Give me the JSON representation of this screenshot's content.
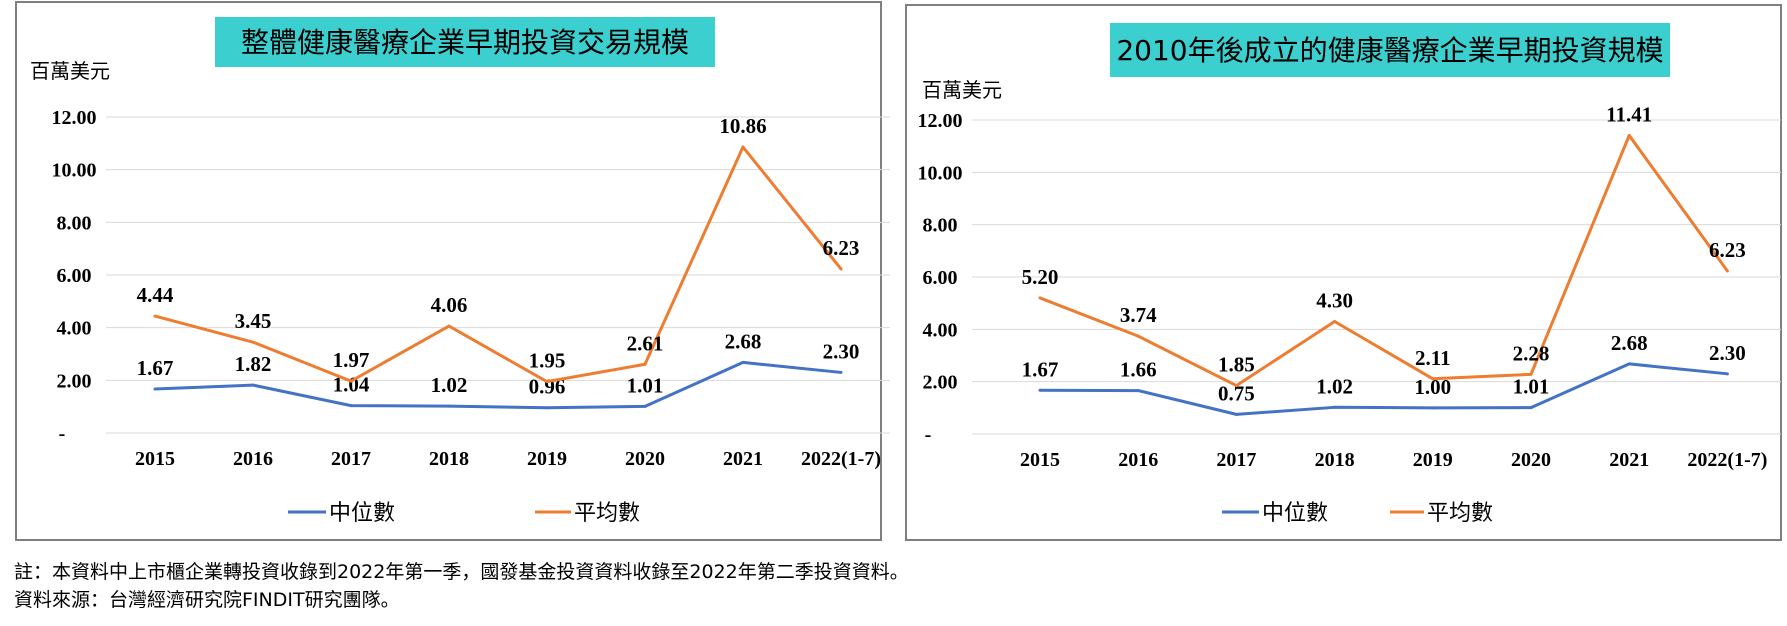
{
  "chart_data": [
    {
      "type": "line",
      "title": "整體健康醫療企業早期投資交易規模",
      "ylabel": "百萬美元",
      "ylim": [
        0,
        12
      ],
      "yticks": [
        "-",
        "2.00",
        "4.00",
        "6.00",
        "8.00",
        "10.00",
        "12.00"
      ],
      "categories": [
        "2015",
        "2016",
        "2017",
        "2018",
        "2019",
        "2020",
        "2021",
        "2022(1-7)"
      ],
      "series": [
        {
          "name": "中位數",
          "color": "#4472C4",
          "values": [
            1.67,
            1.82,
            1.04,
            1.02,
            0.96,
            1.01,
            2.68,
            2.3
          ],
          "labels": [
            "1.67",
            "1.82",
            "1.04",
            "1.02",
            "0.96",
            "1.01",
            "2.68",
            "2.30"
          ]
        },
        {
          "name": "平均數",
          "color": "#ED7D31",
          "values": [
            4.44,
            3.45,
            1.97,
            4.06,
            1.95,
            2.61,
            10.86,
            6.23
          ],
          "labels": [
            "4.44",
            "3.45",
            "1.97",
            "4.06",
            "1.95",
            "2.61",
            "10.86",
            "6.23"
          ]
        }
      ],
      "grid": true,
      "legend": "bottom"
    },
    {
      "type": "line",
      "title": "2010年後成立的健康醫療企業早期投資規模",
      "ylabel": "百萬美元",
      "ylim": [
        0,
        12
      ],
      "yticks": [
        "-",
        "2.00",
        "4.00",
        "6.00",
        "8.00",
        "10.00",
        "12.00"
      ],
      "categories": [
        "2015",
        "2016",
        "2017",
        "2018",
        "2019",
        "2020",
        "2021",
        "2022(1-7)"
      ],
      "series": [
        {
          "name": "中位數",
          "color": "#4472C4",
          "values": [
            1.67,
            1.66,
            0.75,
            1.02,
            1.0,
            1.01,
            2.68,
            2.3
          ],
          "labels": [
            "1.67",
            "1.66",
            "0.75",
            "1.02",
            "1.00",
            "1.01",
            "2.68",
            "2.30"
          ]
        },
        {
          "name": "平均數",
          "color": "#ED7D31",
          "values": [
            5.2,
            3.74,
            1.85,
            4.3,
            2.11,
            2.28,
            11.41,
            6.23
          ],
          "labels": [
            "5.20",
            "3.74",
            "1.85",
            "4.30",
            "2.11",
            "2.28",
            "11.41",
            "6.23"
          ]
        }
      ],
      "grid": true,
      "legend": "bottom"
    }
  ],
  "colors": {
    "title_bg": "#3CCFCF",
    "frame": "#7F7F7F",
    "grid": "#D9D9D9"
  },
  "notes": {
    "line1": "註：本資料中上市櫃企業轉投資收錄到2022年第一季，國發基金投資資料收錄至2022年第二季投資資料。",
    "line2": "資料來源：台灣經濟研究院FINDIT研究團隊。"
  }
}
